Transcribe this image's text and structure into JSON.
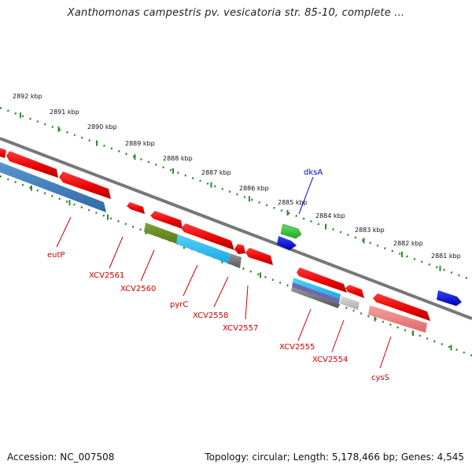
{
  "title": "Xanthomonas campestris pv. vesicatoria str. 85-10, complete ...",
  "footer": {
    "accession": "Accession: NC_007508",
    "summary": "Topology: circular; Length: 5,178,466 bp; Genes: 4,545"
  },
  "kbp_labels": [
    "2892 kbp",
    "2891 kbp",
    "2890 kbp",
    "2889 kbp",
    "2888 kbp",
    "2887 kbp",
    "2886 kbp",
    "2885 kbp",
    "2884 kbp",
    "2883 kbp",
    "2882 kbp",
    "2881 kbp"
  ],
  "gene_labels": {
    "dksA": "dksA",
    "eutP": "eutP",
    "XCV2561": "XCV2561",
    "XCV2560": "XCV2560",
    "pyrC": "pyrC",
    "XCV2558": "XCV2558",
    "XCV2557": "XCV2557",
    "XCV2555": "XCV2555",
    "XCV2554": "XCV2554",
    "cysS": "cysS"
  },
  "colors": {
    "backbone": "#7a7a7a",
    "tick_ring": "#2e8b2e",
    "gene_red": "#ee0000",
    "gene_blue": "#0000dd",
    "gene_green": "#33bb33",
    "cds_steelblue": "#3f7fbf",
    "cds_olive": "#6b8e23",
    "cds_cyan": "#22bbee",
    "cds_grey": "#777777",
    "cds_pink": "#ee8080",
    "label_red": "#cc0000",
    "label_blue": "#0000cc"
  }
}
